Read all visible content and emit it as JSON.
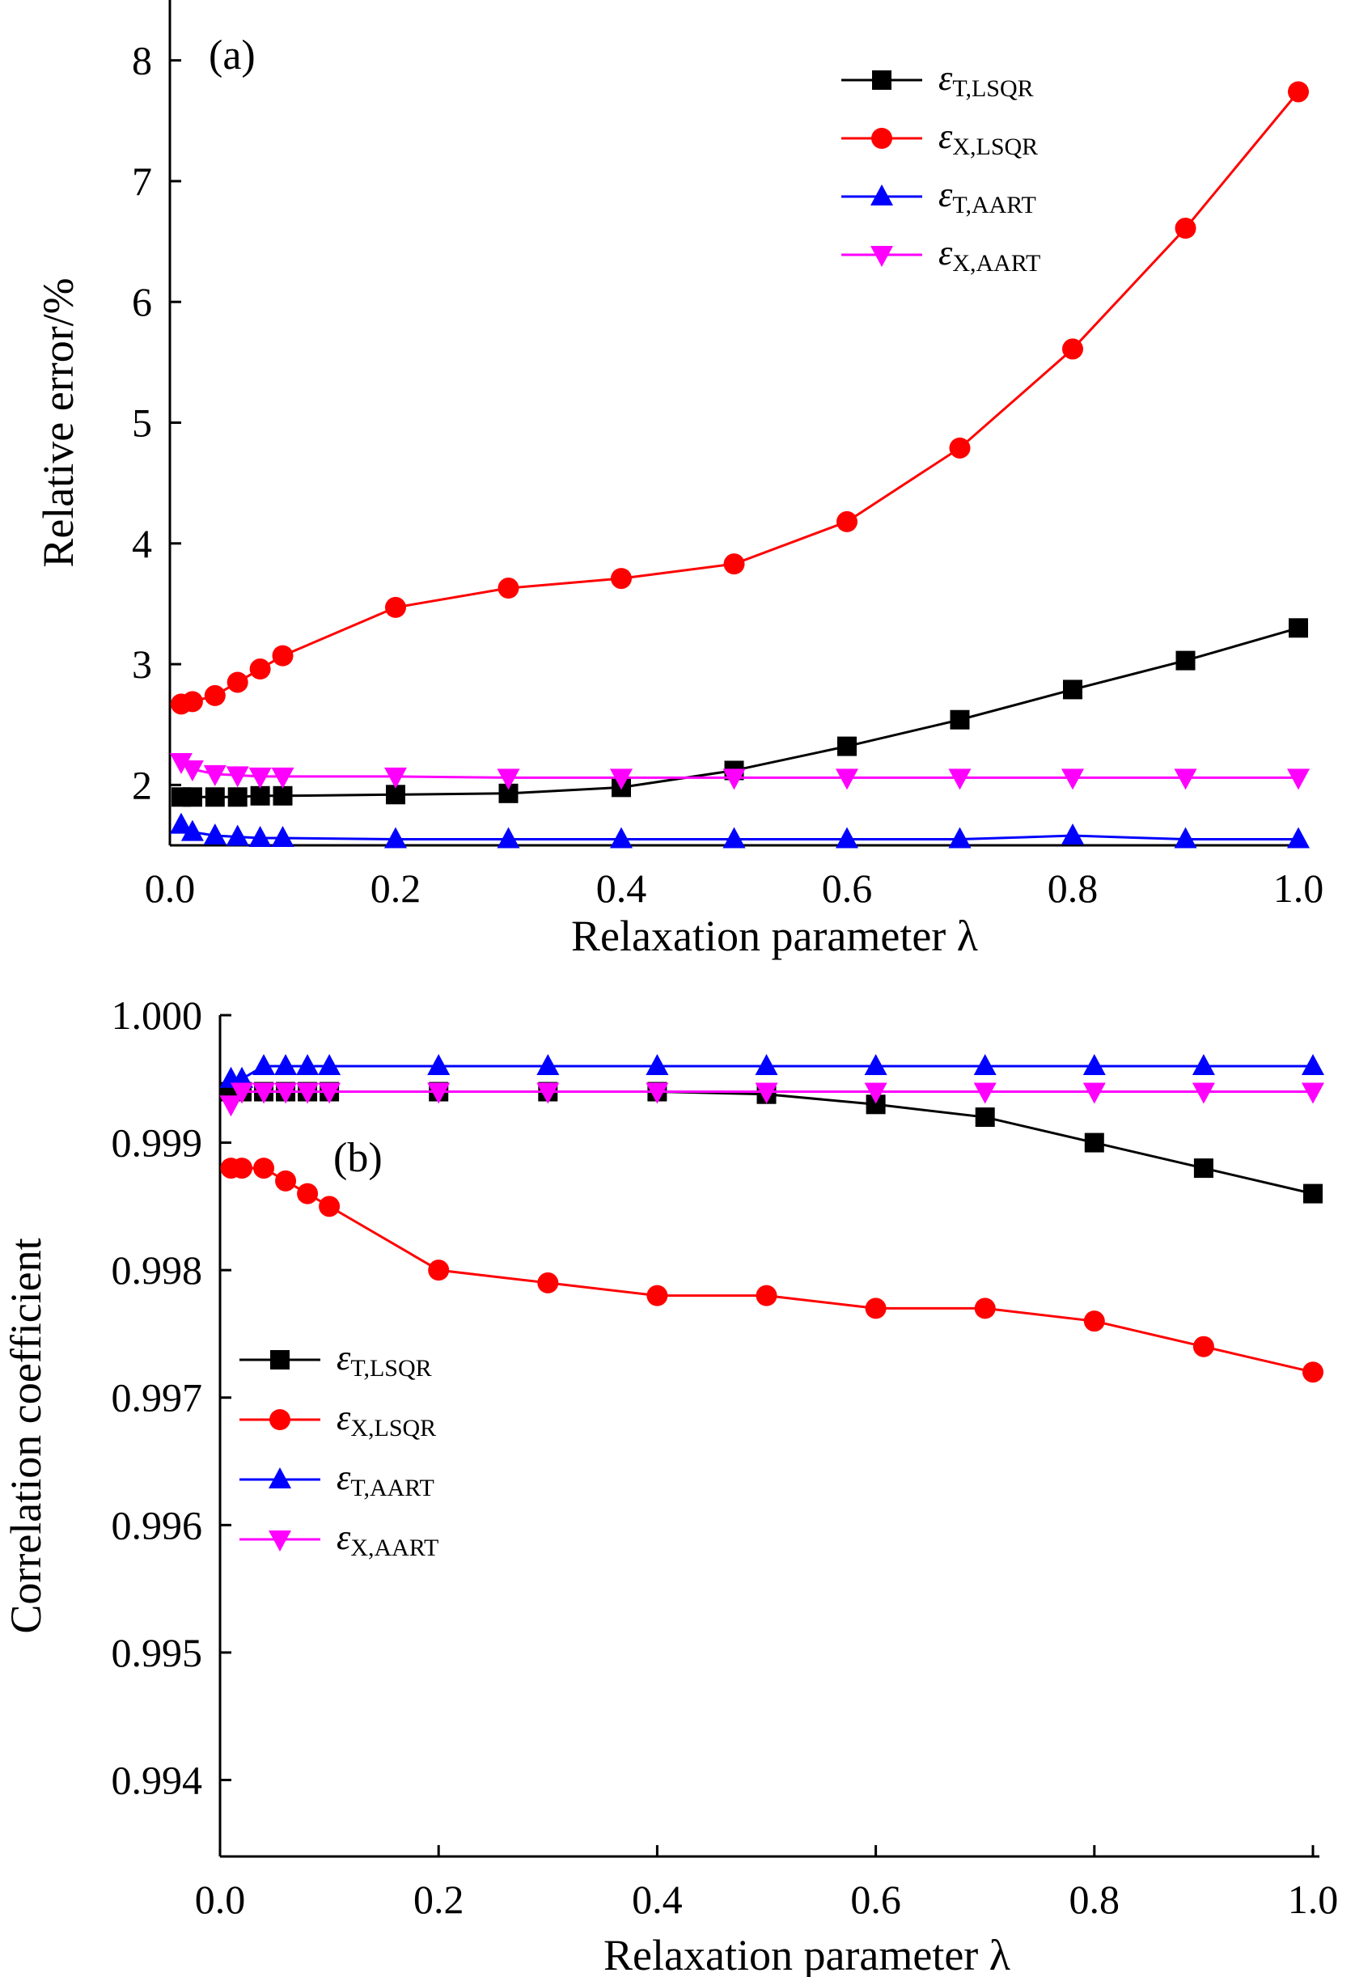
{
  "chart_data": [
    {
      "type": "line",
      "panel_label": "(a)",
      "xlabel": "Relaxation parameter λ",
      "ylabel": "Relative error/%",
      "xlim": [
        0,
        1.0
      ],
      "ylim": [
        1.5,
        8.5
      ],
      "xticks": [
        0,
        0.2,
        0.4,
        0.6,
        0.8,
        1.0
      ],
      "xtick_labels": [
        "0.0",
        "0.2",
        "0.4",
        "0.6",
        "0.8",
        "1.0"
      ],
      "yticks": [
        2,
        3,
        4,
        5,
        6,
        7,
        8
      ],
      "ytick_labels": [
        "2",
        "3",
        "4",
        "5",
        "6",
        "7",
        "8"
      ],
      "grid": false,
      "legend_position": "top-right",
      "x": [
        0.01,
        0.02,
        0.04,
        0.06,
        0.08,
        0.1,
        0.2,
        0.3,
        0.4,
        0.5,
        0.6,
        0.7,
        0.8,
        0.9,
        1.0
      ],
      "series": [
        {
          "name_main": "ε",
          "name_sub": "T,LSQR",
          "color": "#000000",
          "marker": "square",
          "values": [
            1.9,
            1.9,
            1.9,
            1.9,
            1.91,
            1.91,
            1.92,
            1.93,
            1.98,
            2.12,
            2.32,
            2.54,
            2.79,
            3.03,
            3.3
          ]
        },
        {
          "name_main": "ε",
          "name_sub": "X,LSQR",
          "color": "#ff0000",
          "marker": "circle",
          "values": [
            2.67,
            2.69,
            2.74,
            2.85,
            2.96,
            3.07,
            3.47,
            3.63,
            3.71,
            3.83,
            4.18,
            4.79,
            5.61,
            6.61,
            7.74
          ]
        },
        {
          "name_main": "ε",
          "name_sub": "T,AART",
          "color": "#0000ff",
          "marker": "triangle-up",
          "values": [
            1.67,
            1.61,
            1.58,
            1.57,
            1.56,
            1.56,
            1.55,
            1.55,
            1.55,
            1.55,
            1.55,
            1.55,
            1.58,
            1.55,
            1.55
          ]
        },
        {
          "name_main": "ε",
          "name_sub": "X,AART",
          "color": "#ff00ff",
          "marker": "triangle-down",
          "values": [
            2.19,
            2.13,
            2.09,
            2.08,
            2.07,
            2.07,
            2.07,
            2.06,
            2.06,
            2.06,
            2.06,
            2.06,
            2.06,
            2.06,
            2.06
          ]
        }
      ]
    },
    {
      "type": "line",
      "panel_label": "(b)",
      "xlabel": "Relaxation parameter λ",
      "ylabel": "Correlation coefficient",
      "xlim": [
        0,
        1.0
      ],
      "ylim": [
        0.9934,
        1.0
      ],
      "xticks": [
        0,
        0.2,
        0.4,
        0.6,
        0.8,
        1.0
      ],
      "xtick_labels": [
        "0.0",
        "0.2",
        "0.4",
        "0.6",
        "0.8",
        "1.0"
      ],
      "yticks": [
        0.994,
        0.995,
        0.996,
        0.997,
        0.998,
        0.999,
        1.0
      ],
      "ytick_labels": [
        "0.994",
        "0.995",
        "0.996",
        "0.997",
        "0.998",
        "0.999",
        "1.000"
      ],
      "grid": false,
      "legend_position": "center-left",
      "x": [
        0.01,
        0.02,
        0.04,
        0.06,
        0.08,
        0.1,
        0.2,
        0.3,
        0.4,
        0.5,
        0.6,
        0.7,
        0.8,
        0.9,
        1.0
      ],
      "series": [
        {
          "name_main": "ε",
          "name_sub": "T,LSQR",
          "color": "#000000",
          "marker": "square",
          "values": [
            0.9994,
            0.9994,
            0.9994,
            0.9994,
            0.9994,
            0.9994,
            0.9994,
            0.9994,
            0.9994,
            0.99938,
            0.9993,
            0.9992,
            0.999,
            0.9988,
            0.9986
          ]
        },
        {
          "name_main": "ε",
          "name_sub": "X,LSQR",
          "color": "#ff0000",
          "marker": "circle",
          "values": [
            0.9988,
            0.9988,
            0.9988,
            0.9987,
            0.9986,
            0.9985,
            0.998,
            0.9979,
            0.9978,
            0.9978,
            0.9977,
            0.9977,
            0.9976,
            0.9974,
            0.9972
          ]
        },
        {
          "name_main": "ε",
          "name_sub": "T,AART",
          "color": "#0000ff",
          "marker": "triangle-up",
          "values": [
            0.9995,
            0.9995,
            0.9996,
            0.9996,
            0.9996,
            0.9996,
            0.9996,
            0.9996,
            0.9996,
            0.9996,
            0.9996,
            0.9996,
            0.9996,
            0.9996,
            0.9996
          ]
        },
        {
          "name_main": "ε",
          "name_sub": "X,AART",
          "color": "#ff00ff",
          "marker": "triangle-down",
          "values": [
            0.9993,
            0.9994,
            0.9994,
            0.9994,
            0.9994,
            0.9994,
            0.9994,
            0.9994,
            0.9994,
            0.9994,
            0.9994,
            0.9994,
            0.9994,
            0.9994,
            0.9994
          ]
        }
      ]
    }
  ]
}
